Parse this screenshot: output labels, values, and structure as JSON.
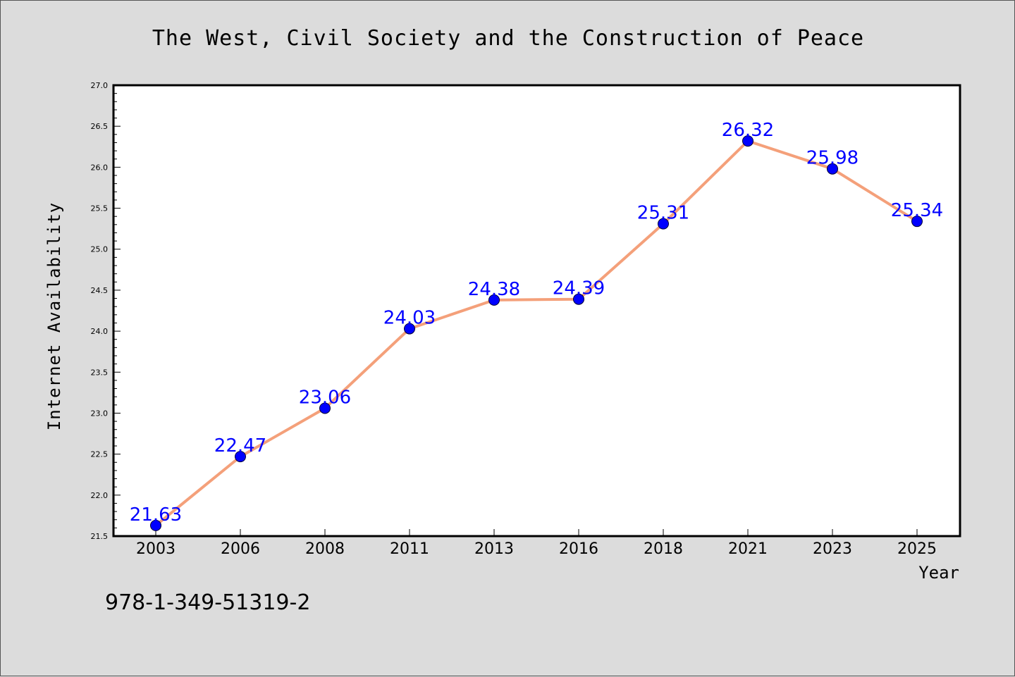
{
  "chart_data": {
    "type": "line",
    "title": "The West, Civil Society and the Construction of Peace",
    "xlabel": "Year",
    "ylabel": "Internet Availability",
    "categories": [
      "2003",
      "2006",
      "2008",
      "2011",
      "2013",
      "2016",
      "2018",
      "2021",
      "2023",
      "2025"
    ],
    "series": [
      {
        "values": [
          21.63,
          22.47,
          23.06,
          24.03,
          24.38,
          24.39,
          25.31,
          26.32,
          25.98,
          25.34
        ],
        "line_color": "#f4a07a",
        "marker_color": "#0000ff"
      }
    ],
    "data_labels": [
      "21.63",
      "22.47",
      "23.06",
      "24.03",
      "24.38",
      "24.39",
      "25.31",
      "26.32",
      "25.98",
      "25.34"
    ],
    "ylim": [
      21.5,
      27.0
    ],
    "yticks": [
      "21.5",
      "22.0",
      "22.5",
      "23.0",
      "23.5",
      "24.0",
      "24.5",
      "25.0",
      "25.5",
      "26.0",
      "26.5",
      "27.0"
    ],
    "grid": false,
    "legend": "none",
    "annotation": "978-1-349-51319-2"
  }
}
